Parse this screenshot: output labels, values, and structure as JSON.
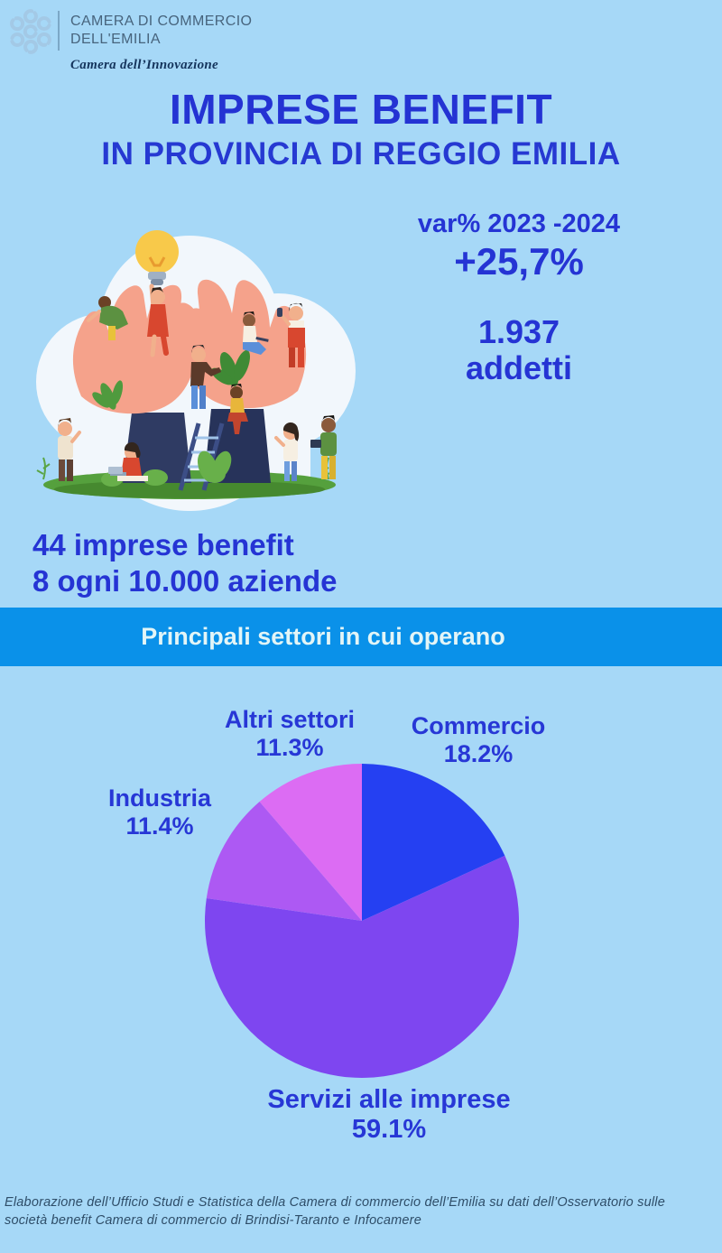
{
  "header": {
    "org_line1": "CAMERA DI COMMERCIO",
    "org_line2": "DELL'EMILIA",
    "sub_brand": "Camera dell’Innovazione"
  },
  "title": {
    "line1": "IMPRESE BENEFIT",
    "line2": "IN PROVINCIA DI REGGIO EMILIA"
  },
  "stats": {
    "var_label": "var% 2023 -2024",
    "var_value": "+25,7%",
    "addetti_value": "1.937",
    "addetti_label": "addetti"
  },
  "highlight": {
    "line1": "44 imprese benefit",
    "line2": "8 ogni 10.000 aziende"
  },
  "banner": {
    "label": "Principali settori in cui operano",
    "bg": "#0a91e9"
  },
  "chart_data": {
    "type": "pie",
    "title": "Principali settori in cui operano",
    "direction": "clockwise",
    "start_angle_deg": 0,
    "slices": [
      {
        "label": "Commercio",
        "value": 18.2,
        "pct_label": "18.2%",
        "color": "#2540f2"
      },
      {
        "label": "Servizi alle imprese",
        "value": 59.1,
        "pct_label": "59.1%",
        "color": "#7e46f0"
      },
      {
        "label": "Industria",
        "value": 11.4,
        "pct_label": "11.4%",
        "color": "#ad59f3"
      },
      {
        "label": "Altri settori",
        "value": 11.3,
        "pct_label": "11.3%",
        "color": "#dc6cf3"
      }
    ]
  },
  "colors": {
    "page_bg": "#a6d8f7",
    "accent_text": "#2534d4",
    "banner_bg": "#0a91e9",
    "banner_text": "#e3f5f7"
  },
  "footer": {
    "text": "Elaborazione dell’Ufficio Studi e Statistica della Camera di commercio dell’Emilia  su dati dell’Osservatorio sulle società benefit Camera di commercio di Brindisi-Taranto e Infocamere"
  }
}
